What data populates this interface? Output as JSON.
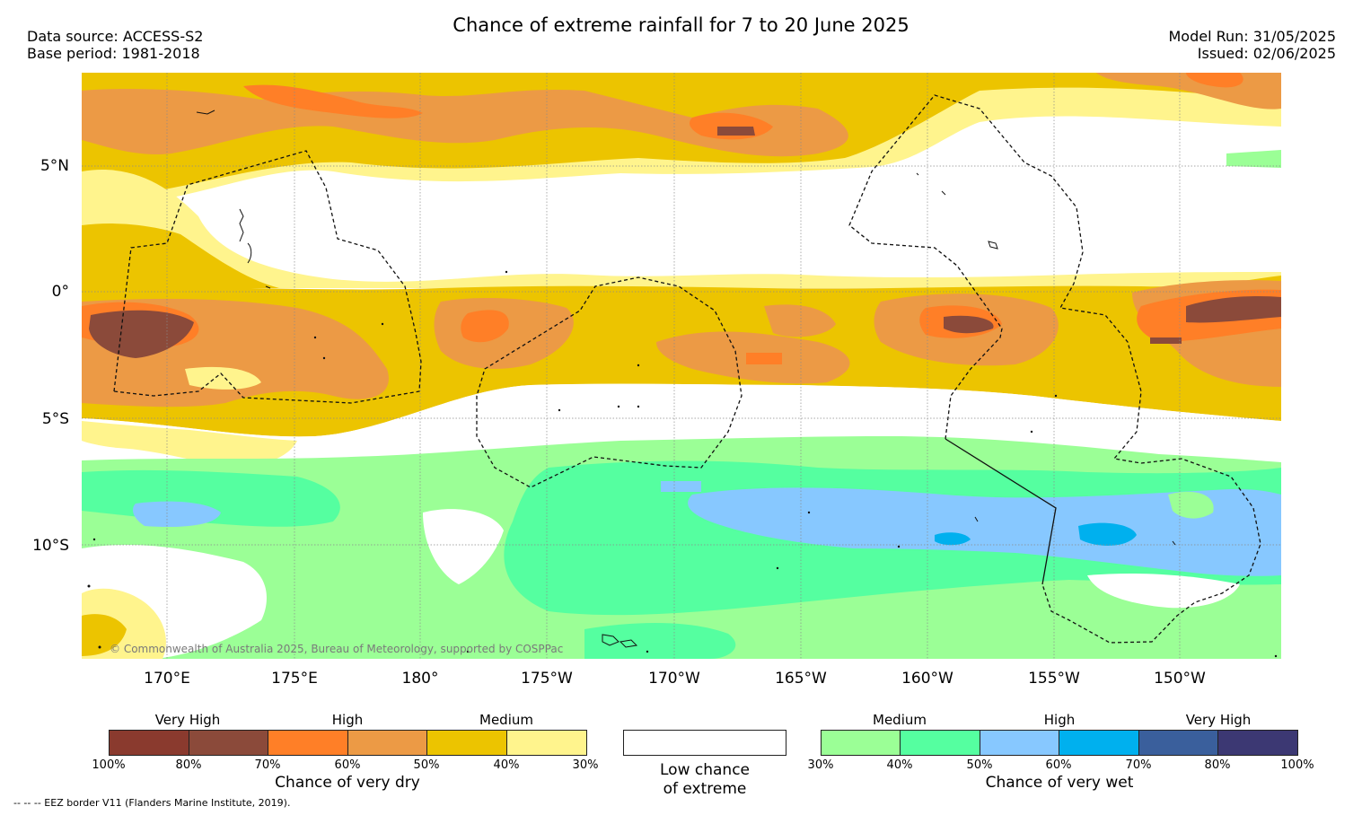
{
  "header": {
    "title": "Chance of extreme rainfall for 7 to 20 June 2025",
    "data_source": "Data source: ACCESS-S2",
    "base_period": "Base period: 1981-2018",
    "model_run": "Model Run: 31/05/2025",
    "issued": "Issued: 02/06/2025"
  },
  "map": {
    "lat_labels": [
      "5°N",
      "0°",
      "5°S",
      "10°S"
    ],
    "lon_labels": [
      "170°E",
      "175°E",
      "180°",
      "175°W",
      "170°W",
      "165°W",
      "160°W",
      "155°W",
      "150°W"
    ],
    "copyright": "© Commonwealth of Australia 2025, Bureau of Meteorology, supported by COSPPac"
  },
  "legend": {
    "dry": {
      "name": "Chance of very dry",
      "categories": [
        "Very High",
        "High",
        "Medium"
      ],
      "ticks": [
        "100%",
        "80%",
        "70%",
        "60%",
        "50%",
        "40%",
        "30%"
      ],
      "colors": [
        "#8a3a2e",
        "#8b4a3a",
        "#ff7f27",
        "#ec9a45",
        "#ecc400",
        "#fff48d"
      ]
    },
    "low": {
      "name_line1": "Low chance",
      "name_line2": "of extreme"
    },
    "wet": {
      "name": "Chance of very wet",
      "categories": [
        "Medium",
        "High",
        "Very High"
      ],
      "ticks": [
        "30%",
        "40%",
        "50%",
        "60%",
        "70%",
        "80%",
        "100%"
      ],
      "colors": [
        "#9bff96",
        "#55ffa0",
        "#87c8ff",
        "#00b0ee",
        "#3a5f9c",
        "#3c3873"
      ]
    }
  },
  "footer": {
    "eez_note": "--  --  -- EEZ border V11 (Flanders Marine Institute, 2019)."
  }
}
